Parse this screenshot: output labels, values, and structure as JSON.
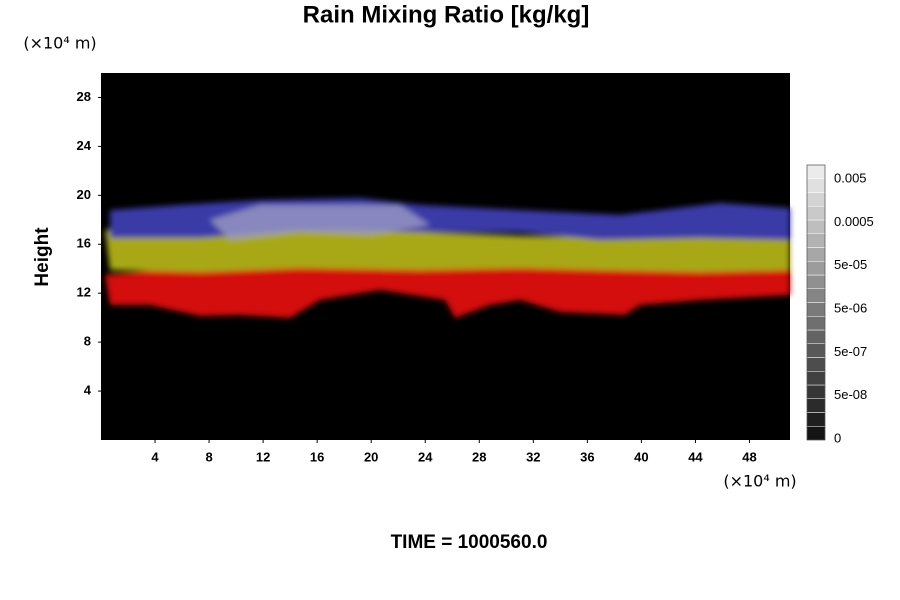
{
  "chart_data": {
    "type": "volume-render",
    "title": "Rain Mixing Ratio [kg/kg]",
    "y_unit": "(×10⁴ m)",
    "x_unit": "(×10⁴ m)",
    "ylabel": "Height",
    "footer": "TIME = 1000560.0",
    "xlim": [
      0,
      51
    ],
    "xticks": [
      4,
      8,
      12,
      16,
      20,
      24,
      28,
      32,
      36,
      40,
      44,
      48
    ],
    "ylim": [
      0,
      30
    ],
    "yticks": [
      4,
      8,
      12,
      16,
      20,
      24,
      28
    ],
    "colorbar_labels": [
      "0.005",
      "0.0005",
      "5e-05",
      "5e-06",
      "5e-07",
      "5e-08",
      "0"
    ]
  }
}
